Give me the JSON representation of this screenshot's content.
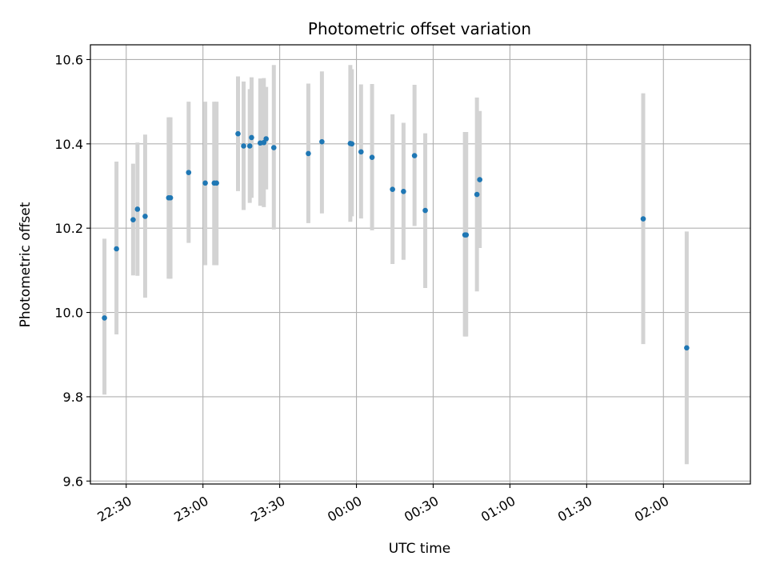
{
  "chart_data": {
    "type": "scatter",
    "title": "Photometric offset variation",
    "xlabel": "UTC time",
    "ylabel": "Photometric offset",
    "x_unit": "UTC clock time (HH:MM), spanning midnight",
    "xlim": [
      "22:16",
      "02:34"
    ],
    "ylim": [
      9.593,
      10.635
    ],
    "x_ticks": [
      "22:30",
      "23:00",
      "23:30",
      "00:00",
      "00:30",
      "01:00",
      "01:30",
      "02:00"
    ],
    "y_ticks": [
      9.6,
      9.8,
      10.0,
      10.2,
      10.4,
      10.6
    ],
    "y_tick_labels": [
      "9.6",
      "9.8",
      "10.0",
      "10.2",
      "10.4",
      "10.6"
    ],
    "grid": true,
    "marker_color": "#1f77b4",
    "errorbar_color": "#d3d3d3",
    "points": [
      {
        "x": "22:21.5",
        "y": 9.987,
        "lo": 9.805,
        "hi": 10.175
      },
      {
        "x": "22:26.2",
        "y": 10.151,
        "lo": 9.948,
        "hi": 10.358
      },
      {
        "x": "22:32.7",
        "y": 10.22,
        "lo": 10.088,
        "hi": 10.353
      },
      {
        "x": "22:34.4",
        "y": 10.245,
        "lo": 10.087,
        "hi": 10.403
      },
      {
        "x": "22:37.4",
        "y": 10.228,
        "lo": 10.035,
        "hi": 10.422
      },
      {
        "x": "22:46.6",
        "y": 10.272,
        "lo": 10.08,
        "hi": 10.463
      },
      {
        "x": "22:47.3",
        "y": 10.272,
        "lo": 10.08,
        "hi": 10.463
      },
      {
        "x": "22:54.4",
        "y": 10.332,
        "lo": 10.165,
        "hi": 10.5
      },
      {
        "x": "23:00.9",
        "y": 10.307,
        "lo": 10.112,
        "hi": 10.5
      },
      {
        "x": "23:04.4",
        "y": 10.307,
        "lo": 10.112,
        "hi": 10.5
      },
      {
        "x": "23:05.3",
        "y": 10.307,
        "lo": 10.112,
        "hi": 10.5
      },
      {
        "x": "23:13.7",
        "y": 10.424,
        "lo": 10.288,
        "hi": 10.56
      },
      {
        "x": "23:15.9",
        "y": 10.395,
        "lo": 10.243,
        "hi": 10.548
      },
      {
        "x": "23:18.3",
        "y": 10.395,
        "lo": 10.26,
        "hi": 10.53
      },
      {
        "x": "23:19.0",
        "y": 10.415,
        "lo": 10.272,
        "hi": 10.558
      },
      {
        "x": "23:22.4",
        "y": 10.402,
        "lo": 10.253,
        "hi": 10.555
      },
      {
        "x": "23:23.8",
        "y": 10.403,
        "lo": 10.25,
        "hi": 10.556
      },
      {
        "x": "23:24.7",
        "y": 10.412,
        "lo": 10.292,
        "hi": 10.535
      },
      {
        "x": "23:27.7",
        "y": 10.391,
        "lo": 10.197,
        "hi": 10.587
      },
      {
        "x": "23:41.2",
        "y": 10.377,
        "lo": 10.212,
        "hi": 10.543
      },
      {
        "x": "23:46.5",
        "y": 10.405,
        "lo": 10.235,
        "hi": 10.572
      },
      {
        "x": "23:57.6",
        "y": 10.401,
        "lo": 10.215,
        "hi": 10.587
      },
      {
        "x": "23:58.2",
        "y": 10.4,
        "lo": 10.228,
        "hi": 10.577
      },
      {
        "x": "00:01.8",
        "y": 10.381,
        "lo": 10.223,
        "hi": 10.541
      },
      {
        "x": "00:06.1",
        "y": 10.368,
        "lo": 10.195,
        "hi": 10.542
      },
      {
        "x": "00:14.1",
        "y": 10.292,
        "lo": 10.115,
        "hi": 10.47
      },
      {
        "x": "00:18.4",
        "y": 10.287,
        "lo": 10.125,
        "hi": 10.45
      },
      {
        "x": "00:22.7",
        "y": 10.372,
        "lo": 10.205,
        "hi": 10.54
      },
      {
        "x": "00:26.9",
        "y": 10.242,
        "lo": 10.058,
        "hi": 10.425
      },
      {
        "x": "00:42.4",
        "y": 10.184,
        "lo": 9.943,
        "hi": 10.428
      },
      {
        "x": "00:42.9",
        "y": 10.184,
        "lo": 9.943,
        "hi": 10.428
      },
      {
        "x": "00:47.1",
        "y": 10.28,
        "lo": 10.05,
        "hi": 10.51
      },
      {
        "x": "00:48.2",
        "y": 10.315,
        "lo": 10.153,
        "hi": 10.478
      },
      {
        "x": "01:52.1",
        "y": 10.222,
        "lo": 9.925,
        "hi": 10.52
      },
      {
        "x": "02:09.1",
        "y": 9.916,
        "lo": 9.64,
        "hi": 10.192
      }
    ]
  }
}
